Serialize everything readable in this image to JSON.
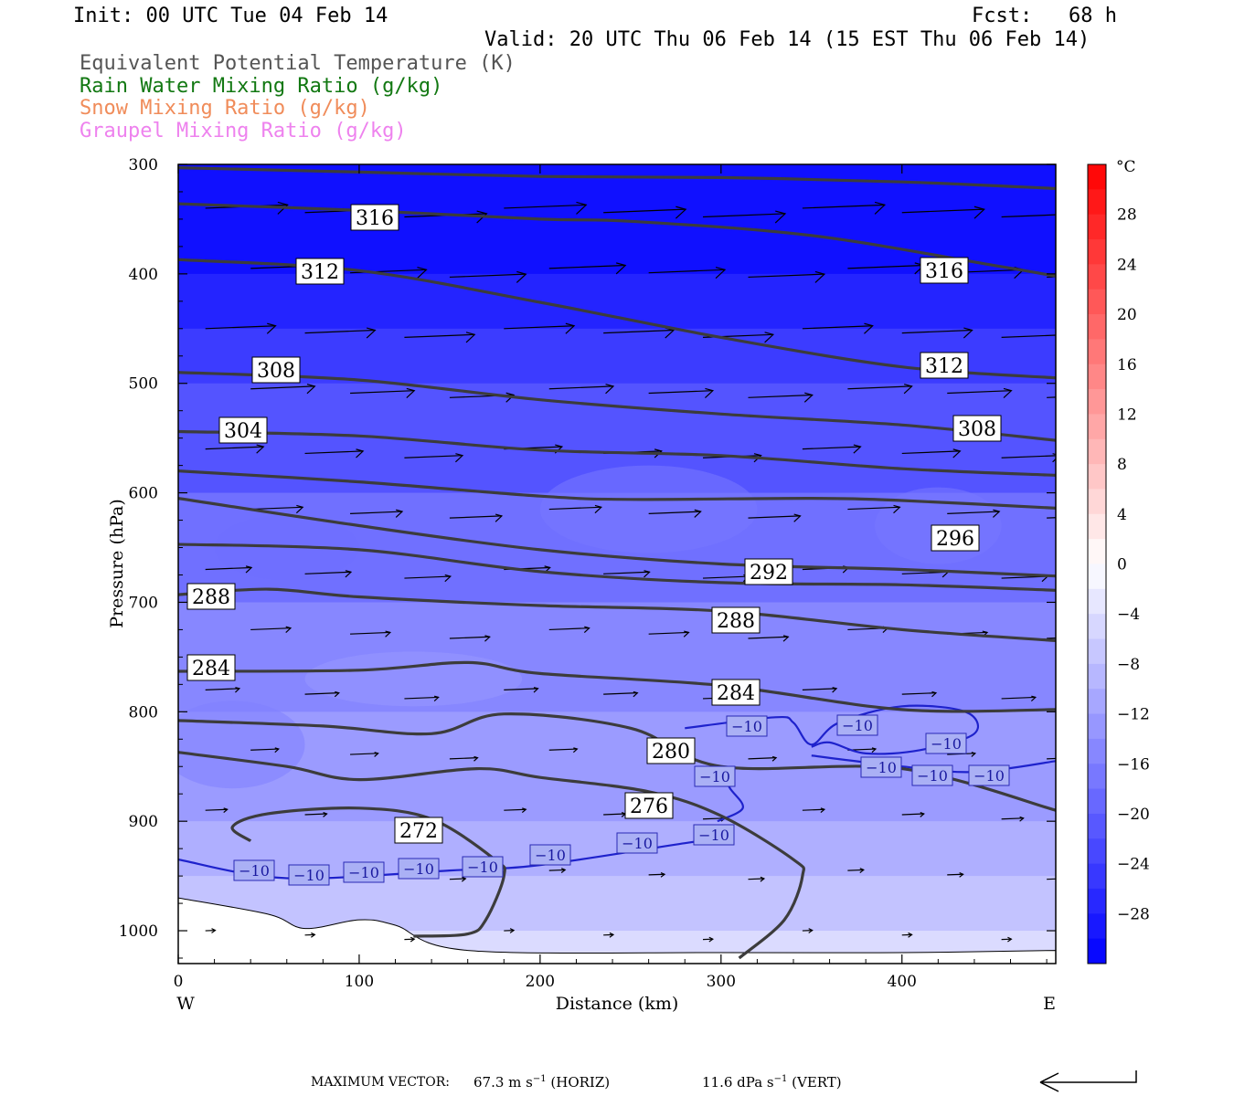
{
  "header": {
    "init": "Init: 00 UTC Tue 04 Feb 14",
    "fcst": "Fcst:   68 h",
    "valid": "Valid: 20 UTC Thu 06 Feb 14 (15 EST Thu 06 Feb 14)"
  },
  "legend": [
    {
      "label": "Equivalent Potential Temperature (K)",
      "color": "#555555"
    },
    {
      "label": "Rain Water Mixing Ratio (g/kg)",
      "color": "#127812"
    },
    {
      "label": "Snow Mixing Ratio (g/kg)",
      "color": "#f08c5a"
    },
    {
      "label": "Graupel Mixing Ratio (g/kg)",
      "color": "#ee82ee"
    }
  ],
  "chart_data": {
    "type": "cross-section",
    "xlabel": "Distance (km)",
    "ylabel": "Pressure (hPa)",
    "xlim": [
      0,
      485
    ],
    "ylim": [
      300,
      1030
    ],
    "x_ticks": [
      0,
      100,
      200,
      300,
      400
    ],
    "y_ticks": [
      300,
      400,
      500,
      600,
      700,
      800,
      900,
      1000
    ],
    "x_left_end": "W",
    "x_right_end": "E",
    "theta_e_label_values": [
      "316",
      "312",
      "316",
      "308",
      "312",
      "304",
      "308",
      "296",
      "292",
      "288",
      "288",
      "284",
      "284",
      "280",
      "276",
      "272"
    ],
    "theta_e_contours": [
      {
        "value": 320,
        "points": [
          [
            0,
            303
          ],
          [
            100,
            307
          ],
          [
            200,
            311
          ],
          [
            300,
            312
          ],
          [
            400,
            316
          ],
          [
            485,
            322
          ]
        ]
      },
      {
        "value": 316,
        "points": [
          [
            0,
            336
          ],
          [
            100,
            342
          ],
          [
            200,
            350
          ],
          [
            250,
            352
          ],
          [
            350,
            365
          ],
          [
            450,
            392
          ],
          [
            485,
            402
          ]
        ]
      },
      {
        "value": 312,
        "points": [
          [
            0,
            387
          ],
          [
            100,
            397
          ],
          [
            200,
            426
          ],
          [
            300,
            458
          ],
          [
            400,
            485
          ],
          [
            485,
            495
          ]
        ]
      },
      {
        "value": 308,
        "points": [
          [
            0,
            490
          ],
          [
            100,
            497
          ],
          [
            200,
            515
          ],
          [
            300,
            528
          ],
          [
            400,
            538
          ],
          [
            485,
            552
          ]
        ]
      },
      {
        "value": 304,
        "points": [
          [
            0,
            544
          ],
          [
            100,
            548
          ],
          [
            200,
            561
          ],
          [
            300,
            566
          ],
          [
            400,
            578
          ],
          [
            485,
            584
          ]
        ]
      },
      {
        "value": 300,
        "points": [
          [
            0,
            580
          ],
          [
            100,
            590
          ],
          [
            200,
            603
          ],
          [
            250,
            606
          ],
          [
            350,
            605
          ],
          [
            400,
            607
          ],
          [
            485,
            614
          ]
        ]
      },
      {
        "value": 296,
        "points": [
          [
            0,
            605
          ],
          [
            100,
            630
          ],
          [
            200,
            652
          ],
          [
            300,
            665
          ],
          [
            400,
            670
          ],
          [
            485,
            676
          ]
        ]
      },
      {
        "value": 292,
        "points": [
          [
            0,
            647
          ],
          [
            100,
            652
          ],
          [
            200,
            672
          ],
          [
            300,
            682
          ],
          [
            400,
            684
          ],
          [
            485,
            689
          ]
        ]
      },
      {
        "value": 288,
        "points": [
          [
            0,
            693
          ],
          [
            50,
            688
          ],
          [
            100,
            695
          ],
          [
            200,
            703
          ],
          [
            300,
            708
          ],
          [
            400,
            725
          ],
          [
            485,
            735
          ]
        ]
      },
      {
        "value": 284,
        "points": [
          [
            0,
            763
          ],
          [
            100,
            762
          ],
          [
            160,
            755
          ],
          [
            200,
            765
          ],
          [
            300,
            776
          ],
          [
            400,
            798
          ],
          [
            485,
            798
          ]
        ]
      },
      {
        "value": 280,
        "points": [
          [
            0,
            808
          ],
          [
            80,
            813
          ],
          [
            140,
            820
          ],
          [
            180,
            802
          ],
          [
            250,
            815
          ],
          [
            300,
            850
          ],
          [
            400,
            852
          ],
          [
            485,
            890
          ]
        ]
      },
      {
        "value": 276,
        "points": [
          [
            0,
            837
          ],
          [
            60,
            850
          ],
          [
            100,
            862
          ],
          [
            165,
            852
          ],
          [
            200,
            860
          ],
          [
            260,
            873
          ],
          [
            300,
            895
          ],
          [
            340,
            935
          ],
          [
            345,
            950
          ],
          [
            335,
            990
          ],
          [
            310,
            1025
          ]
        ]
      },
      {
        "value": 272,
        "points": [
          [
            40,
            918
          ],
          [
            30,
            905
          ],
          [
            50,
            893
          ],
          [
            100,
            888
          ],
          [
            140,
            898
          ],
          [
            175,
            935
          ],
          [
            180,
            950
          ],
          [
            170,
            990
          ],
          [
            160,
            1003
          ],
          [
            130,
            1005
          ]
        ]
      }
    ],
    "temperature_minus10_isotherm": [
      {
        "value": -10,
        "points": [
          [
            0,
            935
          ],
          [
            60,
            952
          ],
          [
            150,
            945
          ],
          [
            200,
            940
          ],
          [
            280,
            920
          ],
          [
            300,
            915
          ]
        ]
      },
      {
        "value": -10,
        "points": [
          [
            280,
            815
          ],
          [
            330,
            805
          ],
          [
            340,
            810
          ],
          [
            350,
            830
          ],
          [
            365,
            810
          ],
          [
            400,
            795
          ],
          [
            435,
            800
          ],
          [
            440,
            820
          ],
          [
            410,
            835
          ],
          [
            380,
            838
          ],
          [
            360,
            828
          ],
          [
            350,
            832
          ]
        ]
      },
      {
        "value": -10,
        "points": [
          [
            300,
            855
          ],
          [
            305,
            870
          ],
          [
            312,
            888
          ],
          [
            298,
            900
          ]
        ]
      },
      {
        "value": -10,
        "points": [
          [
            350,
            840
          ],
          [
            400,
            850
          ],
          [
            440,
            855
          ],
          [
            485,
            845
          ]
        ]
      }
    ],
    "minus10_label": "−10",
    "colorbar": {
      "unit": "°C",
      "tick_labels": [
        "28",
        "24",
        "20",
        "16",
        "12",
        "8",
        "4",
        "0",
        "−4",
        "−8",
        "−12",
        "−16",
        "−20",
        "−24",
        "−28"
      ],
      "tick_values": [
        28,
        24,
        20,
        16,
        12,
        8,
        4,
        0,
        -4,
        -8,
        -12,
        -16,
        -20,
        -24,
        -28
      ],
      "range": [
        -32,
        32
      ],
      "step": 2
    },
    "temperature_field_celsius": [
      {
        "pressure": 300,
        "temp": -31
      },
      {
        "pressure": 400,
        "temp": -29
      },
      {
        "pressure": 450,
        "temp": -26
      },
      {
        "pressure": 500,
        "temp": -23
      },
      {
        "pressure": 600,
        "temp": -20
      },
      {
        "pressure": 700,
        "temp": -16
      },
      {
        "pressure": 800,
        "temp": -14
      },
      {
        "pressure": 900,
        "temp": -11
      },
      {
        "pressure": 950,
        "temp": -9
      },
      {
        "pressure": 1000,
        "temp": -6
      },
      {
        "pressure": 1030,
        "temp": -3
      }
    ],
    "terrain": [
      [
        0,
        970
      ],
      [
        50,
        985
      ],
      [
        70,
        998
      ],
      [
        100,
        990
      ],
      [
        120,
        995
      ],
      [
        160,
        1018
      ],
      [
        300,
        1020
      ],
      [
        400,
        1020
      ],
      [
        485,
        1018
      ]
    ]
  },
  "footer": {
    "max_vector_label": "MAXIMUM VECTOR:",
    "horiz_value": "67.3 m s",
    "horiz_exp": "−1",
    "horiz_tag": "(HORIZ)",
    "vert_value": "11.6 dPa s",
    "vert_exp": "−1",
    "vert_tag": "(VERT)"
  },
  "colors": {
    "theta_e": "#3c3c3c",
    "isotherm": "#1e22cc",
    "terrain_fill": "#ffffff",
    "axis": "#000000"
  }
}
